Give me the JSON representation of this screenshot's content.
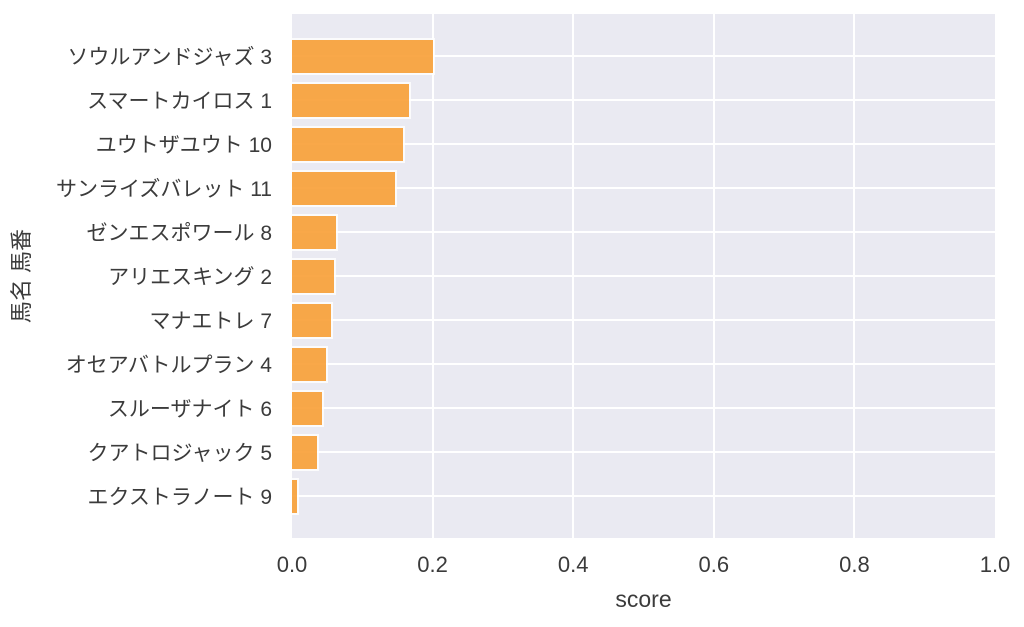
{
  "chart_data": {
    "type": "bar",
    "orientation": "horizontal",
    "title": "",
    "xlabel": "score",
    "ylabel": "馬名 馬番",
    "xlim": [
      0,
      1.0
    ],
    "xticks": [
      0,
      0.2,
      0.4,
      0.6,
      0.8,
      1.0
    ],
    "xtick_labels": [
      "0.0",
      "0.2",
      "0.4",
      "0.6",
      "0.8",
      "1.0"
    ],
    "grid": true,
    "legend": false,
    "categories": [
      "ソウルアンドジャズ 3",
      "スマートカイロス 1",
      "ユウトザユウト 10",
      "サンライズバレット 11",
      "ゼンエスポワール 8",
      "アリエスキング 2",
      "マナエトレ 7",
      "オセアバトルプラン 4",
      "スルーザナイト 6",
      "クアトロジャック 5",
      "エクストラノート 9"
    ],
    "values": [
      0.2,
      0.166,
      0.158,
      0.146,
      0.062,
      0.06,
      0.055,
      0.049,
      0.042,
      0.036,
      0.007
    ],
    "colors": {
      "bar": "#F9A23C",
      "bar_edge": "#FFFFFF",
      "plot_background": "#EAEAF2",
      "figure_background": "#FFFFFF",
      "grid": "#FFFFFF",
      "text": "#3B3B3B"
    }
  }
}
